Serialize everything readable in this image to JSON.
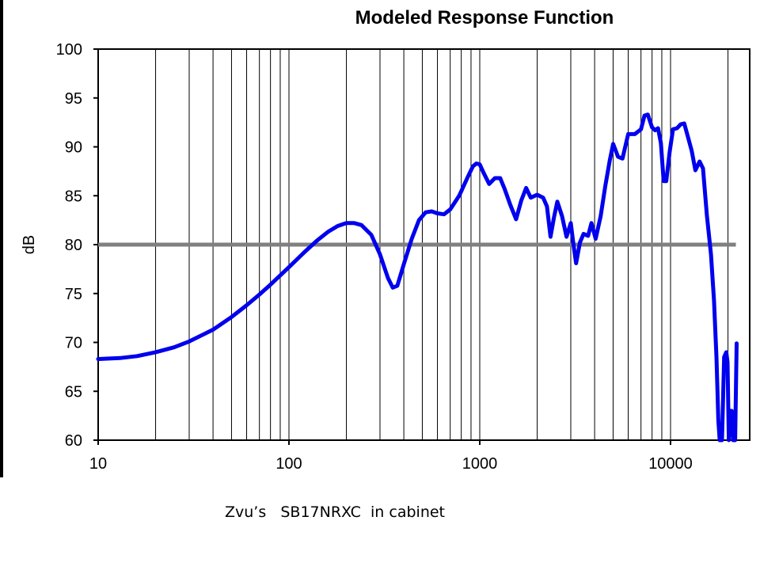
{
  "chart_data": {
    "type": "line",
    "title": "Modeled Response Function",
    "ylabel": "dB",
    "xlabel": "",
    "xscale": "log",
    "xlim": [
      10,
      25000
    ],
    "ylim": [
      60,
      100
    ],
    "x_ticks": [
      10,
      100,
      1000,
      10000
    ],
    "x_tick_labels": [
      "10",
      "100",
      "1000",
      "10000"
    ],
    "y_ticks": [
      60,
      65,
      70,
      75,
      80,
      85,
      90,
      95,
      100
    ],
    "y_tick_labels": [
      "60",
      "65",
      "70",
      "75",
      "80",
      "85",
      "90",
      "95",
      "100"
    ],
    "grid": "vertical, log minor",
    "line_color": "#0000ee",
    "reference_color": "#808080",
    "reference_line": {
      "y": 80,
      "x_range": [
        10,
        22000
      ]
    },
    "series": [
      {
        "points": [
          [
            10,
            68.3
          ],
          [
            13,
            68.4
          ],
          [
            16,
            68.6
          ],
          [
            20,
            69.0
          ],
          [
            25,
            69.5
          ],
          [
            30,
            70.1
          ],
          [
            40,
            71.3
          ],
          [
            50,
            72.6
          ],
          [
            60,
            73.8
          ],
          [
            70,
            74.9
          ],
          [
            80,
            75.9
          ],
          [
            100,
            77.7
          ],
          [
            120,
            79.2
          ],
          [
            140,
            80.4
          ],
          [
            160,
            81.3
          ],
          [
            180,
            81.9
          ],
          [
            200,
            82.2
          ],
          [
            220,
            82.2
          ],
          [
            240,
            82.0
          ],
          [
            270,
            81.0
          ],
          [
            300,
            79.0
          ],
          [
            330,
            76.6
          ],
          [
            350,
            75.6
          ],
          [
            370,
            75.8
          ],
          [
            400,
            78.0
          ],
          [
            440,
            80.6
          ],
          [
            480,
            82.5
          ],
          [
            520,
            83.3
          ],
          [
            560,
            83.4
          ],
          [
            600,
            83.2
          ],
          [
            650,
            83.1
          ],
          [
            700,
            83.6
          ],
          [
            780,
            85.0
          ],
          [
            860,
            86.8
          ],
          [
            920,
            88.0
          ],
          [
            960,
            88.3
          ],
          [
            1000,
            88.2
          ],
          [
            1050,
            87.3
          ],
          [
            1120,
            86.2
          ],
          [
            1200,
            86.8
          ],
          [
            1280,
            86.8
          ],
          [
            1350,
            85.7
          ],
          [
            1450,
            84.0
          ],
          [
            1550,
            82.6
          ],
          [
            1650,
            84.5
          ],
          [
            1750,
            85.8
          ],
          [
            1850,
            84.8
          ],
          [
            2000,
            85.1
          ],
          [
            2150,
            84.8
          ],
          [
            2250,
            83.9
          ],
          [
            2350,
            80.8
          ],
          [
            2450,
            82.8
          ],
          [
            2550,
            84.4
          ],
          [
            2700,
            82.9
          ],
          [
            2850,
            80.8
          ],
          [
            3000,
            82.2
          ],
          [
            3100,
            80.0
          ],
          [
            3200,
            78.1
          ],
          [
            3350,
            80.2
          ],
          [
            3500,
            81.1
          ],
          [
            3700,
            80.9
          ],
          [
            3850,
            82.2
          ],
          [
            4050,
            80.6
          ],
          [
            4300,
            82.9
          ],
          [
            4550,
            86.0
          ],
          [
            4800,
            88.6
          ],
          [
            5000,
            90.3
          ],
          [
            5300,
            89.0
          ],
          [
            5600,
            88.8
          ],
          [
            6000,
            91.3
          ],
          [
            6500,
            91.3
          ],
          [
            7000,
            91.8
          ],
          [
            7300,
            93.2
          ],
          [
            7600,
            93.3
          ],
          [
            8000,
            92.0
          ],
          [
            8300,
            91.7
          ],
          [
            8600,
            91.9
          ],
          [
            8900,
            90.4
          ],
          [
            9200,
            86.5
          ],
          [
            9500,
            86.5
          ],
          [
            9900,
            89.5
          ],
          [
            10300,
            91.8
          ],
          [
            10800,
            91.9
          ],
          [
            11300,
            92.3
          ],
          [
            11800,
            92.4
          ],
          [
            12300,
            91.1
          ],
          [
            12900,
            89.6
          ],
          [
            13500,
            87.6
          ],
          [
            14200,
            88.5
          ],
          [
            14800,
            87.8
          ],
          [
            15500,
            83.0
          ],
          [
            16300,
            79.0
          ],
          [
            16900,
            74.3
          ],
          [
            17400,
            68.5
          ],
          [
            17800,
            62.0
          ],
          [
            18100,
            60.0
          ],
          [
            18600,
            60.0
          ],
          [
            19100,
            68.5
          ],
          [
            19600,
            69.0
          ],
          [
            19900,
            68.0
          ],
          [
            20200,
            60.0
          ],
          [
            20500,
            63.0
          ],
          [
            20900,
            63.0
          ],
          [
            21300,
            60.0
          ],
          [
            21800,
            60.0
          ],
          [
            22200,
            69.9
          ]
        ]
      }
    ]
  },
  "caption": "Zvu’s   SB17NRXC  in cabinet"
}
